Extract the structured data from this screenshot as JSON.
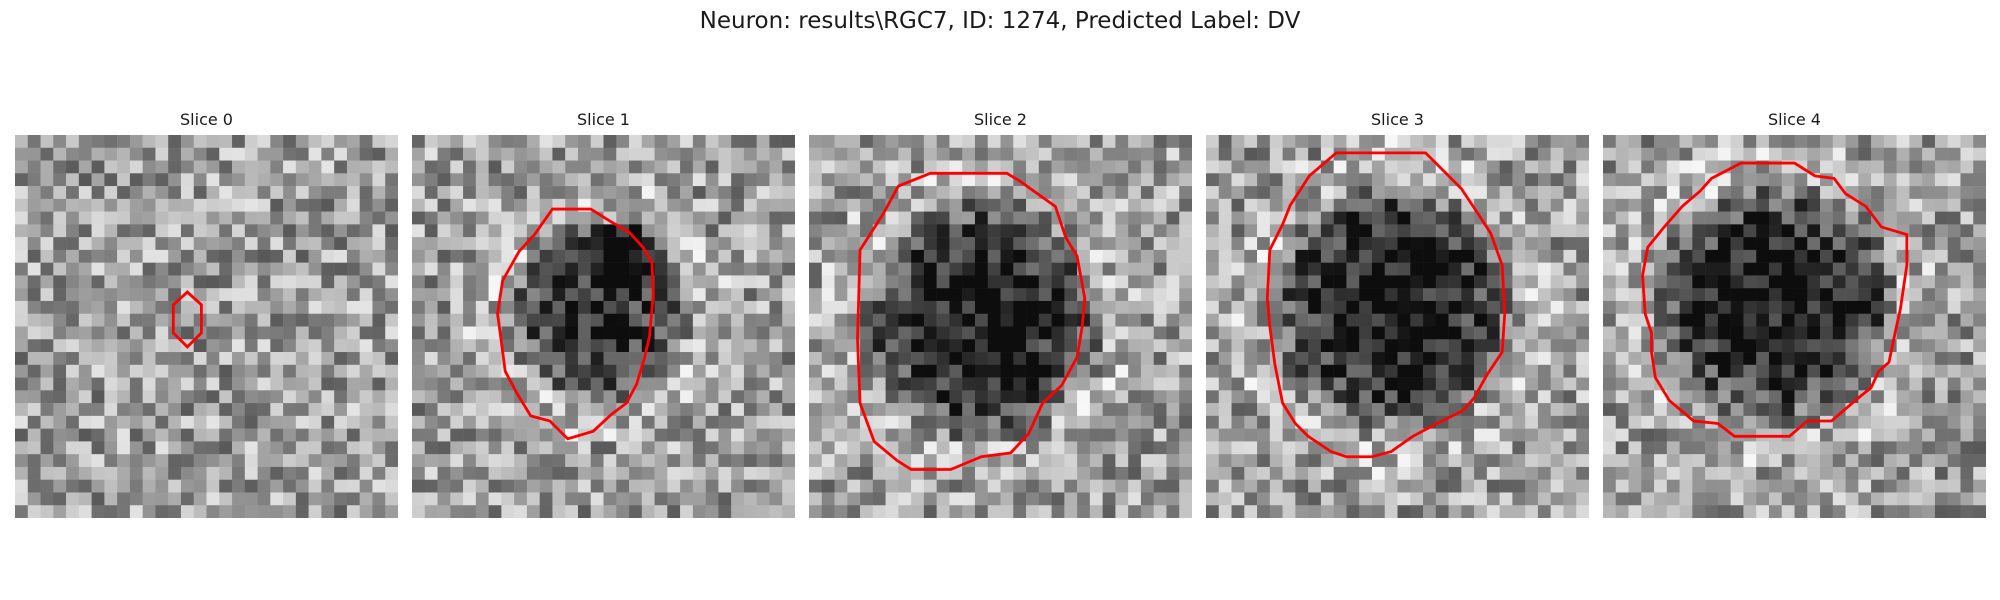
{
  "figure": {
    "title": "Neuron: results\\RGC7, ID: 1274, Predicted Label: DV"
  },
  "contour_color": "#ff0000",
  "panels": [
    {
      "title": "Slice 0",
      "soma": {
        "cx": 13.5,
        "cy": 14.5,
        "r": 1.6,
        "depth": 0.1,
        "blob": 0.0
      },
      "contour": [
        [
          13.5,
          12.3
        ],
        [
          14.6,
          13.3
        ],
        [
          14.6,
          15.5
        ],
        [
          13.5,
          16.6
        ],
        [
          12.4,
          15.5
        ],
        [
          12.4,
          13.3
        ]
      ]
    },
    {
      "title": "Slice 1",
      "soma": {
        "cx": 14.5,
        "cy": 14.0,
        "r": 7.5,
        "depth": 0.45,
        "blob": 0.55
      },
      "contour": [
        [
          11.0,
          5.8
        ],
        [
          14.0,
          5.8
        ],
        [
          15.6,
          6.8
        ],
        [
          17.0,
          7.6
        ],
        [
          18.1,
          8.8
        ],
        [
          18.8,
          10.0
        ],
        [
          18.9,
          12.5
        ],
        [
          18.6,
          15.8
        ],
        [
          18.2,
          17.5
        ],
        [
          17.6,
          19.5
        ],
        [
          16.8,
          21.0
        ],
        [
          15.6,
          21.9
        ],
        [
          14.2,
          23.2
        ],
        [
          12.2,
          23.8
        ],
        [
          10.8,
          22.4
        ],
        [
          9.3,
          22.0
        ],
        [
          8.2,
          20.2
        ],
        [
          7.3,
          18.5
        ],
        [
          7.0,
          16.2
        ],
        [
          6.7,
          14.0
        ],
        [
          7.1,
          11.4
        ],
        [
          8.4,
          9.1
        ],
        [
          9.6,
          7.8
        ]
      ]
    },
    {
      "title": "Slice 2",
      "soma": {
        "cx": 13.5,
        "cy": 14.5,
        "r": 10.0,
        "depth": 0.55,
        "blob": 0.0
      },
      "contour": [
        [
          7.0,
          4.0
        ],
        [
          9.5,
          3.0
        ],
        [
          15.5,
          3.0
        ],
        [
          16.5,
          3.6
        ],
        [
          19.3,
          5.6
        ],
        [
          20.1,
          8.0
        ],
        [
          21.0,
          9.5
        ],
        [
          21.6,
          12.8
        ],
        [
          21.4,
          15.0
        ],
        [
          21.0,
          17.4
        ],
        [
          19.8,
          19.6
        ],
        [
          18.3,
          21.0
        ],
        [
          17.2,
          23.4
        ],
        [
          15.8,
          24.9
        ],
        [
          13.5,
          25.2
        ],
        [
          11.1,
          26.2
        ],
        [
          8.0,
          26.2
        ],
        [
          6.9,
          25.5
        ],
        [
          5.1,
          24.0
        ],
        [
          4.0,
          21.0
        ],
        [
          3.8,
          16.0
        ],
        [
          4.0,
          9.0
        ],
        [
          5.8,
          6.2
        ]
      ]
    },
    {
      "title": "Slice 3",
      "soma": {
        "cx": 14.5,
        "cy": 13.5,
        "r": 10.2,
        "depth": 0.55,
        "blob": 0.0
      },
      "contour": [
        [
          10.2,
          1.4
        ],
        [
          17.2,
          1.4
        ],
        [
          18.4,
          2.6
        ],
        [
          20.0,
          4.2
        ],
        [
          21.2,
          6.0
        ],
        [
          22.3,
          7.7
        ],
        [
          23.2,
          10.2
        ],
        [
          23.4,
          14.0
        ],
        [
          23.2,
          17.0
        ],
        [
          22.0,
          18.8
        ],
        [
          21.0,
          20.6
        ],
        [
          20.1,
          21.6
        ],
        [
          18.1,
          22.6
        ],
        [
          16.2,
          23.6
        ],
        [
          14.5,
          24.8
        ],
        [
          13.0,
          25.2
        ],
        [
          11.0,
          25.2
        ],
        [
          9.8,
          24.8
        ],
        [
          8.0,
          23.6
        ],
        [
          7.0,
          22.6
        ],
        [
          6.0,
          21.0
        ],
        [
          5.4,
          18.0
        ],
        [
          5.0,
          15.0
        ],
        [
          4.8,
          12.8
        ],
        [
          5.0,
          9.0
        ],
        [
          6.0,
          7.0
        ],
        [
          6.6,
          5.5
        ],
        [
          8.1,
          3.2
        ]
      ]
    },
    {
      "title": "Slice 4",
      "soma": {
        "cx": 13.5,
        "cy": 13.2,
        "r": 10.0,
        "depth": 0.55,
        "blob": 0.0
      },
      "contour": [
        [
          10.8,
          2.2
        ],
        [
          15.0,
          2.2
        ],
        [
          16.6,
          3.2
        ],
        [
          18.1,
          3.4
        ],
        [
          19.0,
          4.6
        ],
        [
          20.6,
          5.6
        ],
        [
          21.8,
          7.2
        ],
        [
          23.8,
          7.8
        ],
        [
          23.8,
          10.2
        ],
        [
          23.3,
          13.6
        ],
        [
          22.9,
          15.4
        ],
        [
          22.4,
          17.8
        ],
        [
          21.6,
          18.5
        ],
        [
          21.0,
          19.8
        ],
        [
          20.0,
          20.6
        ],
        [
          17.9,
          22.4
        ],
        [
          16.0,
          22.4
        ],
        [
          14.6,
          23.6
        ],
        [
          13.5,
          23.6
        ],
        [
          12.0,
          23.6
        ],
        [
          10.3,
          23.6
        ],
        [
          9.0,
          22.6
        ],
        [
          7.1,
          22.4
        ],
        [
          5.2,
          20.8
        ],
        [
          4.1,
          19.0
        ],
        [
          3.8,
          17.0
        ],
        [
          3.8,
          15.5
        ],
        [
          3.3,
          14.0
        ],
        [
          3.1,
          11.0
        ],
        [
          3.5,
          8.8
        ],
        [
          4.8,
          7.2
        ],
        [
          6.2,
          5.6
        ],
        [
          7.6,
          4.4
        ],
        [
          8.5,
          3.4
        ]
      ]
    }
  ]
}
